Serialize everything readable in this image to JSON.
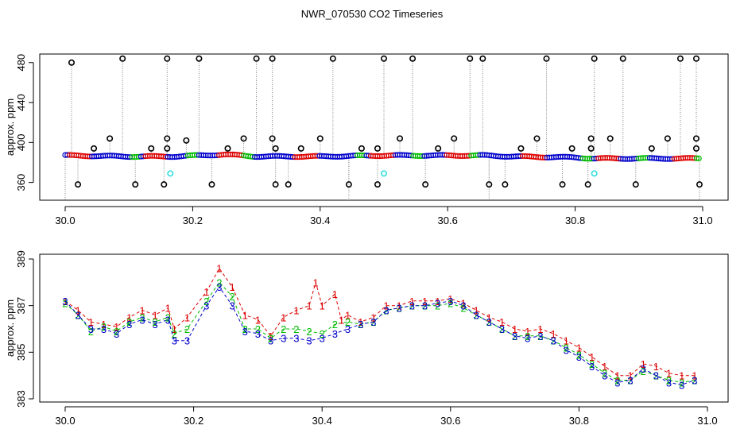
{
  "title": "NWR_070530  CO2 Timeseries",
  "colors": {
    "black": "#000000",
    "red": "#dd0000",
    "blue": "#0000cc",
    "green": "#00bb00",
    "cyan": "#33dddd",
    "grey": "#888888"
  },
  "chart_data": [
    {
      "type": "scatter",
      "ylabel": "approx. ppm",
      "xlabel": "",
      "xlim": [
        30.0,
        31.0
      ],
      "ylim": [
        345,
        488
      ],
      "xticks": [
        "30.0",
        "30.2",
        "30.4",
        "30.6",
        "30.8",
        "31.0"
      ],
      "yticks": [
        "360",
        "400",
        "440",
        "480"
      ],
      "baseline": {
        "x": [
          30.0,
          30.1,
          30.16,
          30.17,
          30.25,
          30.3,
          30.33,
          30.4,
          30.5,
          30.6,
          30.66,
          30.7,
          30.8,
          30.83,
          30.9,
          31.0
        ],
        "y": [
          387,
          386,
          386,
          386,
          388,
          386,
          386,
          386,
          387,
          387,
          387,
          386,
          385,
          384,
          384,
          384
        ]
      },
      "spike_high": [
        {
          "x": 30.01,
          "y": 480
        },
        {
          "x": 30.09,
          "y": 484
        },
        {
          "x": 30.16,
          "y": 484
        },
        {
          "x": 30.21,
          "y": 484
        },
        {
          "x": 30.3,
          "y": 484
        },
        {
          "x": 30.325,
          "y": 484
        },
        {
          "x": 30.42,
          "y": 484
        },
        {
          "x": 30.5,
          "y": 484
        },
        {
          "x": 30.545,
          "y": 484
        },
        {
          "x": 30.635,
          "y": 484
        },
        {
          "x": 30.655,
          "y": 484
        },
        {
          "x": 30.755,
          "y": 484
        },
        {
          "x": 30.83,
          "y": 484
        },
        {
          "x": 30.875,
          "y": 484
        },
        {
          "x": 30.965,
          "y": 484
        },
        {
          "x": 30.99,
          "y": 484
        }
      ],
      "spike_mid": [
        {
          "x": 30.045,
          "y": 394
        },
        {
          "x": 30.07,
          "y": 404
        },
        {
          "x": 30.135,
          "y": 394
        },
        {
          "x": 30.16,
          "y": 394
        },
        {
          "x": 30.16,
          "y": 404
        },
        {
          "x": 30.19,
          "y": 402
        },
        {
          "x": 30.255,
          "y": 394
        },
        {
          "x": 30.28,
          "y": 404
        },
        {
          "x": 30.325,
          "y": 404
        },
        {
          "x": 30.33,
          "y": 394
        },
        {
          "x": 30.37,
          "y": 394
        },
        {
          "x": 30.4,
          "y": 404
        },
        {
          "x": 30.465,
          "y": 394
        },
        {
          "x": 30.49,
          "y": 394
        },
        {
          "x": 30.525,
          "y": 404
        },
        {
          "x": 30.585,
          "y": 394
        },
        {
          "x": 30.61,
          "y": 404
        },
        {
          "x": 30.715,
          "y": 394
        },
        {
          "x": 30.74,
          "y": 404
        },
        {
          "x": 30.795,
          "y": 394
        },
        {
          "x": 30.825,
          "y": 394
        },
        {
          "x": 30.825,
          "y": 404
        },
        {
          "x": 30.855,
          "y": 404
        },
        {
          "x": 30.92,
          "y": 394
        },
        {
          "x": 30.945,
          "y": 404
        },
        {
          "x": 30.99,
          "y": 394
        },
        {
          "x": 30.99,
          "y": 404
        }
      ],
      "spike_low": [
        {
          "x": 30.02,
          "y": 358
        },
        {
          "x": 30.11,
          "y": 358
        },
        {
          "x": 30.155,
          "y": 358
        },
        {
          "x": 30.23,
          "y": 358
        },
        {
          "x": 30.33,
          "y": 358
        },
        {
          "x": 30.35,
          "y": 358
        },
        {
          "x": 30.445,
          "y": 358
        },
        {
          "x": 30.49,
          "y": 358
        },
        {
          "x": 30.565,
          "y": 358
        },
        {
          "x": 30.665,
          "y": 358
        },
        {
          "x": 30.69,
          "y": 358
        },
        {
          "x": 30.78,
          "y": 358
        },
        {
          "x": 30.82,
          "y": 358
        },
        {
          "x": 30.895,
          "y": 358
        },
        {
          "x": 30.995,
          "y": 358
        }
      ],
      "cyan_points": [
        {
          "x": 30.165,
          "y": 369
        },
        {
          "x": 30.5,
          "y": 369
        },
        {
          "x": 30.83,
          "y": 369
        }
      ]
    },
    {
      "type": "scatter",
      "ylabel": "approx. ppm",
      "xlabel": "",
      "xlim": [
        30.0,
        31.0
      ],
      "ylim": [
        383,
        389
      ],
      "xticks": [
        "30.0",
        "30.2",
        "30.4",
        "30.6",
        "30.8",
        "31.0"
      ],
      "yticks": [
        "383",
        "385",
        "387",
        "389"
      ],
      "series": [
        {
          "marker": "1",
          "color": "#dd0000",
          "x": [
            30.0,
            30.02,
            30.04,
            30.06,
            30.08,
            30.1,
            30.12,
            30.14,
            30.16,
            30.17,
            30.19,
            30.22,
            30.24,
            30.26,
            30.28,
            30.3,
            30.32,
            30.34,
            30.36,
            30.38,
            30.39,
            30.4,
            30.42,
            30.43,
            30.44,
            30.46,
            30.48,
            30.5,
            30.52,
            30.54,
            30.56,
            30.58,
            30.6,
            30.62,
            30.64,
            30.66,
            30.68,
            30.7,
            30.72,
            30.74,
            30.76,
            30.78,
            30.8,
            30.82,
            30.84,
            30.86,
            30.88,
            30.9,
            30.92,
            30.94,
            30.96,
            30.98
          ],
          "y": [
            387.2,
            386.8,
            386.3,
            386.2,
            386.1,
            386.5,
            386.8,
            386.6,
            386.9,
            386.0,
            386.5,
            387.6,
            388.6,
            387.8,
            386.6,
            386.4,
            385.7,
            386.5,
            386.8,
            387.0,
            388.0,
            387.0,
            387.5,
            386.4,
            386.6,
            386.3,
            386.5,
            387.0,
            387.0,
            387.2,
            387.2,
            387.2,
            387.3,
            387.1,
            386.8,
            386.5,
            386.3,
            386.0,
            385.9,
            386.0,
            385.8,
            385.5,
            385.2,
            384.8,
            384.4,
            384.0,
            384.0,
            384.5,
            384.4,
            384.1,
            384.0,
            384.0
          ]
        },
        {
          "marker": "2",
          "color": "#00bb00",
          "x": [
            30.0,
            30.02,
            30.04,
            30.06,
            30.08,
            30.1,
            30.12,
            30.14,
            30.16,
            30.17,
            30.19,
            30.22,
            30.24,
            30.26,
            30.28,
            30.3,
            30.32,
            30.34,
            30.36,
            30.38,
            30.4,
            30.42,
            30.44,
            30.46,
            30.48,
            30.5,
            30.52,
            30.54,
            30.56,
            30.58,
            30.6,
            30.62,
            30.64,
            30.66,
            30.68,
            30.7,
            30.72,
            30.74,
            30.76,
            30.78,
            30.8,
            30.82,
            30.84,
            30.86,
            30.88,
            30.9,
            30.92,
            30.94,
            30.96,
            30.98
          ],
          "y": [
            387.1,
            386.6,
            385.9,
            386.1,
            385.9,
            386.3,
            386.5,
            386.3,
            386.5,
            385.8,
            386.0,
            387.2,
            388.0,
            387.4,
            386.0,
            386.0,
            385.6,
            386.0,
            386.0,
            385.9,
            385.8,
            386.2,
            386.3,
            386.2,
            386.3,
            386.8,
            386.9,
            387.0,
            387.0,
            387.0,
            387.1,
            386.9,
            386.6,
            386.3,
            386.0,
            385.7,
            385.7,
            385.7,
            385.5,
            385.2,
            384.9,
            384.5,
            384.1,
            383.8,
            383.8,
            384.2,
            384.0,
            383.8,
            383.7,
            383.8
          ]
        },
        {
          "marker": "3",
          "color": "#0000cc",
          "x": [
            30.0,
            30.02,
            30.04,
            30.06,
            30.08,
            30.1,
            30.12,
            30.14,
            30.16,
            30.17,
            30.19,
            30.22,
            30.24,
            30.26,
            30.28,
            30.3,
            30.32,
            30.34,
            30.36,
            30.38,
            30.4,
            30.42,
            30.44,
            30.46,
            30.48,
            30.5,
            30.52,
            30.54,
            30.56,
            30.58,
            30.6,
            30.62,
            30.64,
            30.66,
            30.68,
            30.7,
            30.72,
            30.74,
            30.76,
            30.78,
            30.8,
            30.82,
            30.84,
            30.86,
            30.88,
            30.9,
            30.92,
            30.94,
            30.96,
            30.98
          ],
          "y": [
            387.2,
            386.6,
            386.0,
            386.0,
            385.8,
            386.2,
            386.4,
            386.2,
            386.4,
            385.5,
            385.5,
            387.0,
            387.8,
            387.0,
            385.9,
            385.8,
            385.5,
            385.6,
            385.6,
            385.5,
            385.6,
            385.8,
            386.0,
            386.2,
            386.3,
            386.8,
            386.9,
            387.0,
            387.0,
            387.1,
            387.2,
            387.0,
            386.6,
            386.3,
            386.0,
            385.7,
            385.6,
            385.7,
            385.5,
            385.1,
            384.8,
            384.4,
            384.0,
            383.7,
            383.8,
            384.3,
            384.0,
            383.7,
            383.6,
            383.8
          ]
        }
      ]
    }
  ]
}
